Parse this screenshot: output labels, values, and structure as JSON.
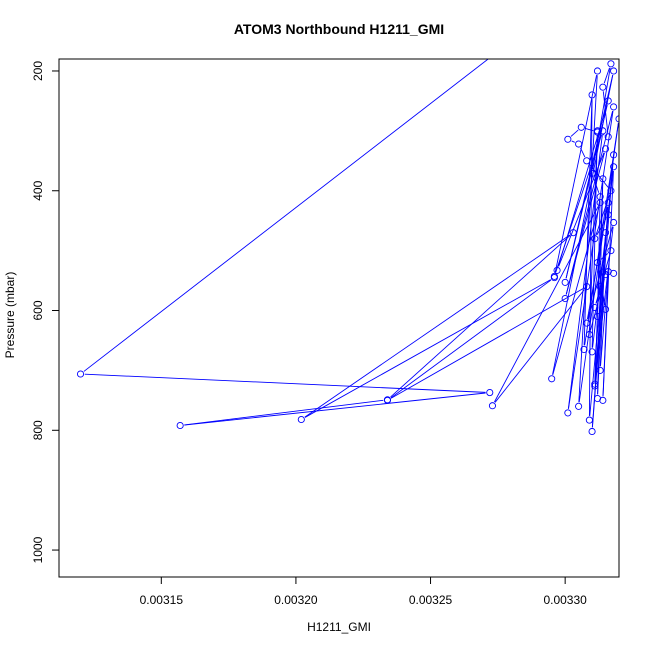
{
  "chart_data": {
    "type": "line",
    "title": "ATOM3 Northbound H1211_GMI",
    "xlabel": "H1211_GMI",
    "ylabel": "Pressure (mbar)",
    "xlim": [
      0.003112,
      0.00332
    ],
    "ylim": [
      1045,
      180
    ],
    "y_reversed": true,
    "x_ticks": [
      "0.00315",
      "0.00320",
      "0.00325",
      "0.00330"
    ],
    "x_tick_values": [
      0.00315,
      0.0032,
      0.00325,
      0.0033
    ],
    "y_ticks": [
      "200",
      "400",
      "600",
      "800",
      "1000"
    ],
    "y_tick_values": [
      200,
      400,
      600,
      800,
      1000
    ],
    "grid": false,
    "legend": "none",
    "line_color": "#0000ff",
    "marker": "open-circle",
    "series": [
      {
        "name": "",
        "points": [
          [
            0.003293,
            105
          ],
          [
            0.00312,
            706
          ],
          [
            0.003272,
            737
          ],
          [
            0.003157,
            792
          ],
          [
            0.003234,
            749
          ],
          [
            0.003303,
            470
          ],
          [
            0.003202,
            782
          ],
          [
            0.003296,
            545
          ],
          [
            0.003234,
            750
          ],
          [
            0.003308,
            560
          ],
          [
            0.003273,
            759
          ],
          [
            0.003313,
            420
          ],
          [
            0.003295,
            714
          ],
          [
            0.003318,
            200
          ],
          [
            0.0033,
            553
          ],
          [
            0.003316,
            250
          ],
          [
            0.003297,
            533
          ],
          [
            0.003315,
            330
          ],
          [
            0.0033,
            580
          ],
          [
            0.003318,
            260
          ],
          [
            0.003301,
            771
          ],
          [
            0.003314,
            300
          ],
          [
            0.003296,
            543
          ],
          [
            0.003312,
            200
          ],
          [
            0.003305,
            760
          ],
          [
            0.00332,
            280
          ],
          [
            0.003307,
            665
          ],
          [
            0.00331,
            240
          ],
          [
            0.003309,
            783
          ],
          [
            0.003318,
            340
          ],
          [
            0.00331,
            802
          ],
          [
            0.003316,
            420
          ],
          [
            0.003308,
            621
          ],
          [
            0.003318,
            453
          ],
          [
            0.003311,
            723
          ],
          [
            0.003314,
            380
          ],
          [
            0.003312,
            747
          ],
          [
            0.003315,
            470
          ],
          [
            0.003313,
            700
          ],
          [
            0.003316,
            535
          ],
          [
            0.003314,
            750
          ],
          [
            0.003318,
            360
          ],
          [
            0.00331,
            669
          ],
          [
            0.003312,
            300
          ],
          [
            0.003309,
            640
          ],
          [
            0.003315,
            540
          ],
          [
            0.003311,
            595
          ],
          [
            0.003317,
            500
          ],
          [
            0.003312,
            520
          ],
          [
            0.003315,
            598
          ],
          [
            0.003313,
            560
          ],
          [
            0.003316,
            440
          ],
          [
            0.003311,
            480
          ],
          [
            0.003317,
            400
          ],
          [
            0.003308,
            350
          ],
          [
            0.003305,
            322
          ],
          [
            0.003301,
            314
          ],
          [
            0.003306,
            294
          ],
          [
            0.003312,
            302
          ],
          [
            0.003316,
            310
          ],
          [
            0.003314,
            227
          ],
          [
            0.003317,
            188
          ],
          [
            0.00331,
            371
          ],
          [
            0.003313,
            410
          ],
          [
            0.003312,
            610
          ],
          [
            0.003311,
            726
          ],
          [
            0.003314,
            536
          ],
          [
            0.003318,
            538
          ]
        ]
      }
    ]
  }
}
